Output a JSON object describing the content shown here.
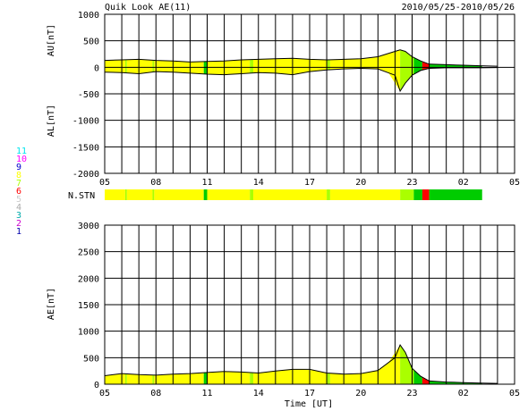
{
  "header": {
    "title": "Quik Look AE(11)",
    "date_range": "2010/05/25-2010/05/26"
  },
  "colors": {
    "background": "#ffffff",
    "grid": "#000000",
    "few_stations": "#ffff00",
    "mid_stations": "#aaff00",
    "many_stations": "#00cc00",
    "low_stations": "#ff0000",
    "trace": "#000000"
  },
  "station_legend": {
    "items": [
      {
        "label": "11",
        "color": "#00e5ee"
      },
      {
        "label": "10",
        "color": "#ff00ff"
      },
      {
        "label": "9",
        "color": "#0000cc"
      },
      {
        "label": "8",
        "color": "#ffff00"
      },
      {
        "label": "7",
        "color": "#aaff00"
      },
      {
        "label": "6",
        "color": "#ff0000"
      },
      {
        "label": "5",
        "color": "#cccccc"
      },
      {
        "label": "4",
        "color": "#aaaaaa"
      },
      {
        "label": "3",
        "color": "#00aaaa"
      },
      {
        "label": "2",
        "color": "#cc00cc"
      },
      {
        "label": "1",
        "color": "#0000aa"
      }
    ]
  },
  "chart_data": [
    {
      "type": "area",
      "name": "AU/AL panel",
      "ylabel_top": "AU[nT]",
      "ylabel_bottom": "AL[nT]",
      "ylim": [
        -2000,
        1000
      ],
      "yticks": [
        "1000",
        "500",
        "0",
        "-500",
        "-1000",
        "-1500",
        "-2000"
      ],
      "xlim_hours": [
        5,
        29
      ],
      "xticks": [
        "05",
        "08",
        "11",
        "14",
        "17",
        "20",
        "23",
        "02",
        "05"
      ],
      "grid": true,
      "series": [
        {
          "name": "AU",
          "x": [
            5,
            6,
            7,
            8,
            9,
            10,
            11,
            12,
            13,
            14,
            15,
            16,
            17,
            18,
            19,
            20,
            21,
            22,
            22.3,
            22.6,
            23,
            23.5,
            24,
            25,
            26,
            27,
            28,
            29
          ],
          "values": [
            130,
            140,
            150,
            130,
            120,
            100,
            110,
            120,
            140,
            150,
            160,
            170,
            150,
            140,
            150,
            160,
            200,
            300,
            330,
            300,
            200,
            120,
            60,
            50,
            40,
            30,
            20,
            null
          ]
        },
        {
          "name": "AL",
          "x": [
            5,
            6,
            7,
            8,
            9,
            10,
            11,
            12,
            13,
            14,
            15,
            16,
            17,
            18,
            19,
            20,
            21,
            22,
            22.3,
            22.6,
            23,
            23.5,
            24,
            25,
            26,
            27,
            28,
            29
          ],
          "values": [
            -90,
            -100,
            -120,
            -80,
            -90,
            -110,
            -130,
            -140,
            -120,
            -100,
            -110,
            -140,
            -80,
            -50,
            -30,
            -20,
            -30,
            -150,
            -450,
            -300,
            -150,
            -60,
            -20,
            -10,
            -10,
            -10,
            -5,
            null
          ]
        }
      ]
    },
    {
      "type": "area",
      "name": "AE panel",
      "ylabel": "AE[nT]",
      "xlabel": "Time [UT]",
      "ylim": [
        0,
        3000
      ],
      "yticks": [
        "3000",
        "2500",
        "2000",
        "1500",
        "1000",
        "500",
        "0"
      ],
      "xlim_hours": [
        5,
        29
      ],
      "xticks": [
        "05",
        "08",
        "11",
        "14",
        "17",
        "20",
        "23",
        "02",
        "05"
      ],
      "grid": true,
      "series": [
        {
          "name": "AE",
          "x": [
            5,
            6,
            7,
            8,
            9,
            10,
            11,
            12,
            13,
            14,
            15,
            16,
            17,
            18,
            19,
            20,
            21,
            22,
            22.3,
            22.6,
            23,
            23.5,
            24,
            25,
            26,
            27,
            28,
            29
          ],
          "values": [
            160,
            200,
            180,
            170,
            190,
            200,
            220,
            240,
            230,
            210,
            250,
            280,
            280,
            210,
            190,
            200,
            260,
            500,
            740,
            600,
            300,
            150,
            60,
            40,
            30,
            20,
            15,
            null
          ]
        }
      ]
    }
  ],
  "station_bar": {
    "label": "N.STN",
    "segments": [
      {
        "start": 5,
        "end": 6.2,
        "color": "#ffff00"
      },
      {
        "start": 6.2,
        "end": 6.3,
        "color": "#aaff00"
      },
      {
        "start": 6.3,
        "end": 7.8,
        "color": "#ffff00"
      },
      {
        "start": 7.8,
        "end": 7.9,
        "color": "#aaff00"
      },
      {
        "start": 7.9,
        "end": 10.8,
        "color": "#ffff00"
      },
      {
        "start": 10.8,
        "end": 11.0,
        "color": "#00cc00"
      },
      {
        "start": 11.0,
        "end": 13.5,
        "color": "#ffff00"
      },
      {
        "start": 13.5,
        "end": 13.7,
        "color": "#aaff00"
      },
      {
        "start": 13.7,
        "end": 18.0,
        "color": "#ffff00"
      },
      {
        "start": 18.0,
        "end": 18.2,
        "color": "#aaff00"
      },
      {
        "start": 18.2,
        "end": 22.3,
        "color": "#ffff00"
      },
      {
        "start": 22.3,
        "end": 23.1,
        "color": "#aaff00"
      },
      {
        "start": 23.1,
        "end": 23.6,
        "color": "#00cc00"
      },
      {
        "start": 23.6,
        "end": 24.0,
        "color": "#ff0000"
      },
      {
        "start": 24.0,
        "end": 27.1,
        "color": "#00cc00"
      }
    ]
  }
}
